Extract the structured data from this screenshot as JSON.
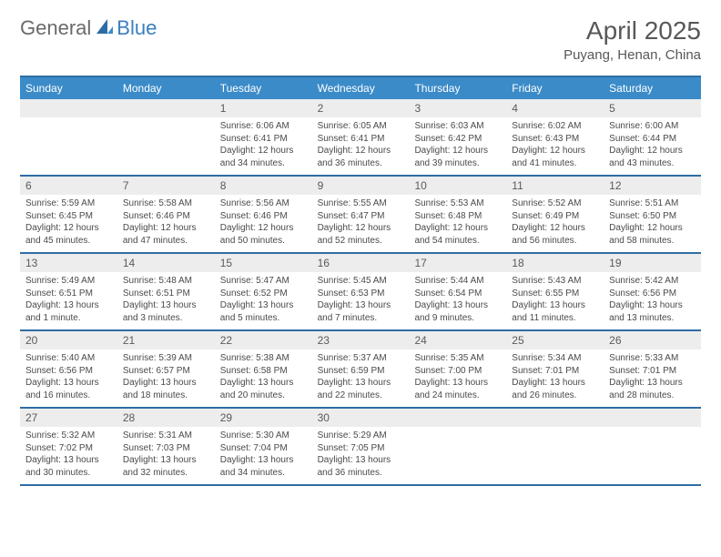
{
  "brand": {
    "a": "General",
    "b": "Blue"
  },
  "title": "April 2025",
  "location": "Puyang, Henan, China",
  "colors": {
    "header_bg": "#3b8bc8",
    "header_border": "#2e6da4",
    "daynum_bg": "#ededed",
    "text_main": "#585858",
    "text_body": "#4a4a4a",
    "brand_gray": "#6a6a6a",
    "brand_blue": "#3a7fbf"
  },
  "weekdays": [
    "Sunday",
    "Monday",
    "Tuesday",
    "Wednesday",
    "Thursday",
    "Friday",
    "Saturday"
  ],
  "weeks": [
    [
      {
        "n": "",
        "sunrise": "",
        "sunset": "",
        "daylight": ""
      },
      {
        "n": "",
        "sunrise": "",
        "sunset": "",
        "daylight": ""
      },
      {
        "n": "1",
        "sunrise": "Sunrise: 6:06 AM",
        "sunset": "Sunset: 6:41 PM",
        "daylight": "Daylight: 12 hours and 34 minutes."
      },
      {
        "n": "2",
        "sunrise": "Sunrise: 6:05 AM",
        "sunset": "Sunset: 6:41 PM",
        "daylight": "Daylight: 12 hours and 36 minutes."
      },
      {
        "n": "3",
        "sunrise": "Sunrise: 6:03 AM",
        "sunset": "Sunset: 6:42 PM",
        "daylight": "Daylight: 12 hours and 39 minutes."
      },
      {
        "n": "4",
        "sunrise": "Sunrise: 6:02 AM",
        "sunset": "Sunset: 6:43 PM",
        "daylight": "Daylight: 12 hours and 41 minutes."
      },
      {
        "n": "5",
        "sunrise": "Sunrise: 6:00 AM",
        "sunset": "Sunset: 6:44 PM",
        "daylight": "Daylight: 12 hours and 43 minutes."
      }
    ],
    [
      {
        "n": "6",
        "sunrise": "Sunrise: 5:59 AM",
        "sunset": "Sunset: 6:45 PM",
        "daylight": "Daylight: 12 hours and 45 minutes."
      },
      {
        "n": "7",
        "sunrise": "Sunrise: 5:58 AM",
        "sunset": "Sunset: 6:46 PM",
        "daylight": "Daylight: 12 hours and 47 minutes."
      },
      {
        "n": "8",
        "sunrise": "Sunrise: 5:56 AM",
        "sunset": "Sunset: 6:46 PM",
        "daylight": "Daylight: 12 hours and 50 minutes."
      },
      {
        "n": "9",
        "sunrise": "Sunrise: 5:55 AM",
        "sunset": "Sunset: 6:47 PM",
        "daylight": "Daylight: 12 hours and 52 minutes."
      },
      {
        "n": "10",
        "sunrise": "Sunrise: 5:53 AM",
        "sunset": "Sunset: 6:48 PM",
        "daylight": "Daylight: 12 hours and 54 minutes."
      },
      {
        "n": "11",
        "sunrise": "Sunrise: 5:52 AM",
        "sunset": "Sunset: 6:49 PM",
        "daylight": "Daylight: 12 hours and 56 minutes."
      },
      {
        "n": "12",
        "sunrise": "Sunrise: 5:51 AM",
        "sunset": "Sunset: 6:50 PM",
        "daylight": "Daylight: 12 hours and 58 minutes."
      }
    ],
    [
      {
        "n": "13",
        "sunrise": "Sunrise: 5:49 AM",
        "sunset": "Sunset: 6:51 PM",
        "daylight": "Daylight: 13 hours and 1 minute."
      },
      {
        "n": "14",
        "sunrise": "Sunrise: 5:48 AM",
        "sunset": "Sunset: 6:51 PM",
        "daylight": "Daylight: 13 hours and 3 minutes."
      },
      {
        "n": "15",
        "sunrise": "Sunrise: 5:47 AM",
        "sunset": "Sunset: 6:52 PM",
        "daylight": "Daylight: 13 hours and 5 minutes."
      },
      {
        "n": "16",
        "sunrise": "Sunrise: 5:45 AM",
        "sunset": "Sunset: 6:53 PM",
        "daylight": "Daylight: 13 hours and 7 minutes."
      },
      {
        "n": "17",
        "sunrise": "Sunrise: 5:44 AM",
        "sunset": "Sunset: 6:54 PM",
        "daylight": "Daylight: 13 hours and 9 minutes."
      },
      {
        "n": "18",
        "sunrise": "Sunrise: 5:43 AM",
        "sunset": "Sunset: 6:55 PM",
        "daylight": "Daylight: 13 hours and 11 minutes."
      },
      {
        "n": "19",
        "sunrise": "Sunrise: 5:42 AM",
        "sunset": "Sunset: 6:56 PM",
        "daylight": "Daylight: 13 hours and 13 minutes."
      }
    ],
    [
      {
        "n": "20",
        "sunrise": "Sunrise: 5:40 AM",
        "sunset": "Sunset: 6:56 PM",
        "daylight": "Daylight: 13 hours and 16 minutes."
      },
      {
        "n": "21",
        "sunrise": "Sunrise: 5:39 AM",
        "sunset": "Sunset: 6:57 PM",
        "daylight": "Daylight: 13 hours and 18 minutes."
      },
      {
        "n": "22",
        "sunrise": "Sunrise: 5:38 AM",
        "sunset": "Sunset: 6:58 PM",
        "daylight": "Daylight: 13 hours and 20 minutes."
      },
      {
        "n": "23",
        "sunrise": "Sunrise: 5:37 AM",
        "sunset": "Sunset: 6:59 PM",
        "daylight": "Daylight: 13 hours and 22 minutes."
      },
      {
        "n": "24",
        "sunrise": "Sunrise: 5:35 AM",
        "sunset": "Sunset: 7:00 PM",
        "daylight": "Daylight: 13 hours and 24 minutes."
      },
      {
        "n": "25",
        "sunrise": "Sunrise: 5:34 AM",
        "sunset": "Sunset: 7:01 PM",
        "daylight": "Daylight: 13 hours and 26 minutes."
      },
      {
        "n": "26",
        "sunrise": "Sunrise: 5:33 AM",
        "sunset": "Sunset: 7:01 PM",
        "daylight": "Daylight: 13 hours and 28 minutes."
      }
    ],
    [
      {
        "n": "27",
        "sunrise": "Sunrise: 5:32 AM",
        "sunset": "Sunset: 7:02 PM",
        "daylight": "Daylight: 13 hours and 30 minutes."
      },
      {
        "n": "28",
        "sunrise": "Sunrise: 5:31 AM",
        "sunset": "Sunset: 7:03 PM",
        "daylight": "Daylight: 13 hours and 32 minutes."
      },
      {
        "n": "29",
        "sunrise": "Sunrise: 5:30 AM",
        "sunset": "Sunset: 7:04 PM",
        "daylight": "Daylight: 13 hours and 34 minutes."
      },
      {
        "n": "30",
        "sunrise": "Sunrise: 5:29 AM",
        "sunset": "Sunset: 7:05 PM",
        "daylight": "Daylight: 13 hours and 36 minutes."
      },
      {
        "n": "",
        "sunrise": "",
        "sunset": "",
        "daylight": ""
      },
      {
        "n": "",
        "sunrise": "",
        "sunset": "",
        "daylight": ""
      },
      {
        "n": "",
        "sunrise": "",
        "sunset": "",
        "daylight": ""
      }
    ]
  ]
}
